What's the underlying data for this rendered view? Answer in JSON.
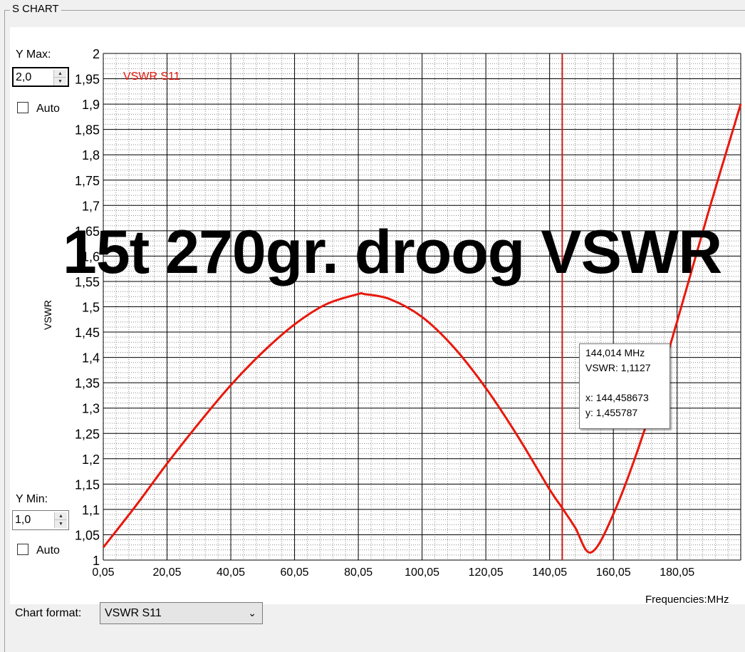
{
  "group": {
    "title": "S CHART"
  },
  "controls": {
    "ymax_label": "Y Max:",
    "ymax_value": "2,0",
    "ymax_auto_label": "Auto",
    "ymin_label": "Y Min:",
    "ymin_value": "1,0",
    "ymin_auto_label": "Auto",
    "chart_format_label": "Chart format:",
    "chart_format_value": "VSWR S11"
  },
  "overlay_title": "15t 270gr. droog VSWR",
  "tooltip": {
    "line1": "144,014 MHz",
    "line2": "VSWR:  1,1127",
    "line3": "x: 144,458673",
    "line4": "y: 1,455787"
  },
  "colors": {
    "series": "#e8180c",
    "grid_major": "#000000",
    "grid_minor": "#8a8a8a",
    "background": "#ffffff"
  },
  "chart_data": {
    "type": "line",
    "title": "",
    "xlabel": "Frequencies:MHz",
    "ylabel": "VSWR",
    "xlim": [
      0.05,
      200
    ],
    "ylim": [
      1.0,
      2.0
    ],
    "grid": true,
    "legend_position": "top-left",
    "x_ticks": [
      0.05,
      20.05,
      40.05,
      60.05,
      80.05,
      100.05,
      120.05,
      140.05,
      160.05,
      180.05
    ],
    "x_tick_labels": [
      "0,05",
      "20,05",
      "40,05",
      "60,05",
      "80,05",
      "100,05",
      "120,05",
      "140,05",
      "160,05",
      "180,05"
    ],
    "y_ticks": [
      1,
      1.05,
      1.1,
      1.15,
      1.2,
      1.25,
      1.3,
      1.35,
      1.4,
      1.45,
      1.5,
      1.55,
      1.6,
      1.65,
      1.7,
      1.75,
      1.8,
      1.85,
      1.9,
      1.95,
      2
    ],
    "y_tick_labels": [
      "1",
      "1,05",
      "1,1",
      "1,15",
      "1,2",
      "1,25",
      "1,3",
      "1,35",
      "1,4",
      "1,45",
      "1,5",
      "1,55",
      "1,6",
      "1,65",
      "1,7",
      "1,75",
      "1,8",
      "1,85",
      "1,9",
      "1,95",
      "2"
    ],
    "marker_x": 144.014,
    "series": [
      {
        "name": "VSWR S11",
        "x": [
          0.05,
          10,
          20,
          30,
          40,
          50,
          60,
          70,
          80,
          82,
          90,
          100,
          110,
          120,
          130,
          140,
          144,
          148,
          153,
          160,
          170,
          180,
          190,
          200
        ],
        "y": [
          1.025,
          1.105,
          1.19,
          1.27,
          1.345,
          1.41,
          1.465,
          1.505,
          1.525,
          1.525,
          1.515,
          1.48,
          1.42,
          1.34,
          1.245,
          1.14,
          1.103,
          1.065,
          1.015,
          1.09,
          1.26,
          1.47,
          1.69,
          1.9
        ]
      }
    ]
  }
}
